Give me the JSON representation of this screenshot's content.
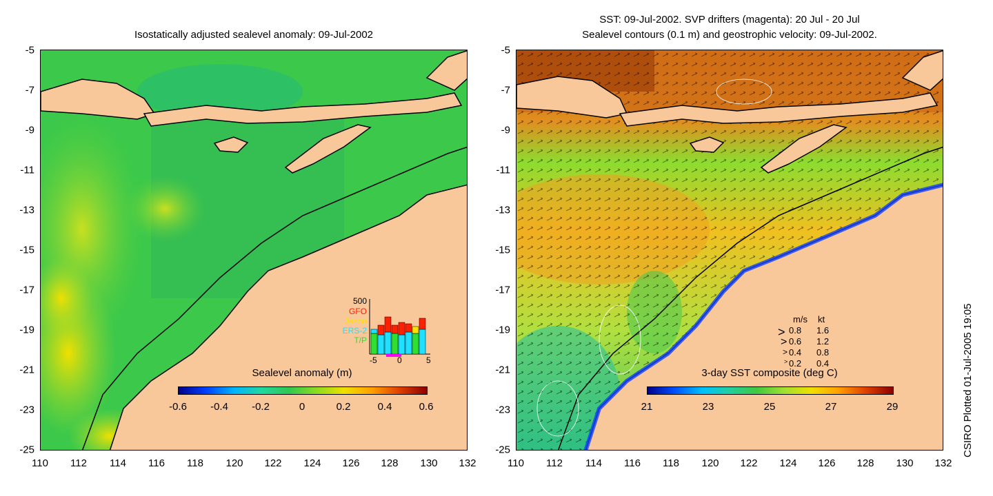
{
  "left_panel": {
    "title": "Isostatically adjusted sealevel anomaly: 09-Jul-2002",
    "colorbar": {
      "label": "Sealevel anomaly (m)",
      "ticks": [
        "-0.6",
        "-0.4",
        "-0.2",
        "0",
        "0.2",
        "0.4",
        "0.6"
      ]
    },
    "histogram": {
      "ymax_label": "500",
      "series": [
        {
          "name": "GFO",
          "color": "#ff2000"
        },
        {
          "name": "Jason",
          "color": "#ffe000"
        },
        {
          "name": "ERS-2",
          "color": "#20e0ff"
        },
        {
          "name": "T/P",
          "color": "#30e030"
        }
      ],
      "x_ticks": [
        "-5",
        "0",
        "5"
      ]
    }
  },
  "right_panel": {
    "title_line1": "SST: 09-Jul-2002. SVP drifters (magenta): 20 Jul - 20 Jul",
    "title_line2": "Sealevel contours (0.1 m) and geostrophic velocity: 09-Jul-2002.",
    "colorbar": {
      "label": "3-day SST composite (deg C)",
      "ticks": [
        "21",
        "23",
        "25",
        "27",
        "29"
      ]
    },
    "velocity_legend": {
      "header_ms": "m/s",
      "header_kt": "kt",
      "rows": [
        {
          "ms": "0.8",
          "kt": "1.6",
          "symbol": ">"
        },
        {
          "ms": "0.6",
          "kt": "1.2",
          "symbol": ">"
        },
        {
          "ms": "0.4",
          "kt": "0.8",
          "symbol": ">"
        },
        {
          "ms": "0.2",
          "kt": "0.4",
          "symbol": ">"
        }
      ]
    }
  },
  "axes": {
    "x_ticks": [
      "110",
      "112",
      "114",
      "116",
      "118",
      "120",
      "122",
      "124",
      "126",
      "128",
      "130",
      "132"
    ],
    "y_ticks": [
      "-5",
      "-7",
      "-9",
      "-11",
      "-13",
      "-15",
      "-17",
      "-19",
      "-21",
      "-23",
      "-25"
    ]
  },
  "colors": {
    "land": "#f9c89a",
    "sla_sea": "#3cc84a",
    "sst_warm": "#e06a10"
  },
  "credit": "CSIRO Plotted 01-Jul-2005 19:05"
}
